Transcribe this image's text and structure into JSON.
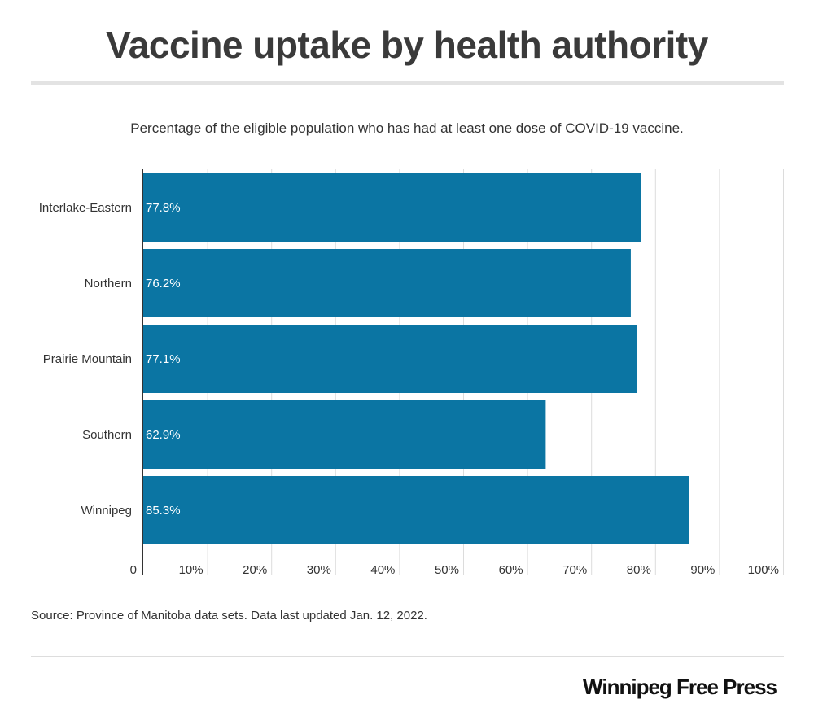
{
  "title": "Vaccine uptake by health authority",
  "subtitle": "Percentage of the eligible population who has had at least one dose of COVID-19 vaccine.",
  "source": "Source: Province of Manitoba data sets.   Data last updated Jan. 12, 2022.",
  "logo_text": "Winnipeg Free Press",
  "colors": {
    "bar": "#0b75a3",
    "grid": "#dcdcdc",
    "axis": "#333333",
    "label": "#ffffff"
  },
  "chart_data": {
    "type": "bar",
    "orientation": "horizontal",
    "categories": [
      "Interlake-Eastern",
      "Northern",
      "Prairie Mountain",
      "Southern",
      "Winnipeg"
    ],
    "values": [
      77.8,
      76.2,
      77.1,
      62.9,
      85.3
    ],
    "data_labels": [
      "77.8%",
      "76.2%",
      "77.1%",
      "62.9%",
      "85.3%"
    ],
    "title": "",
    "xlabel": "",
    "ylabel": "",
    "xlim": [
      0,
      100
    ],
    "x_ticks": [
      0,
      10,
      20,
      30,
      40,
      50,
      60,
      70,
      80,
      90,
      100
    ],
    "x_tick_labels": [
      "0",
      "10%",
      "20%",
      "30%",
      "40%",
      "50%",
      "60%",
      "70%",
      "80%",
      "90%",
      "100%"
    ],
    "grid": true,
    "legend": "none"
  }
}
